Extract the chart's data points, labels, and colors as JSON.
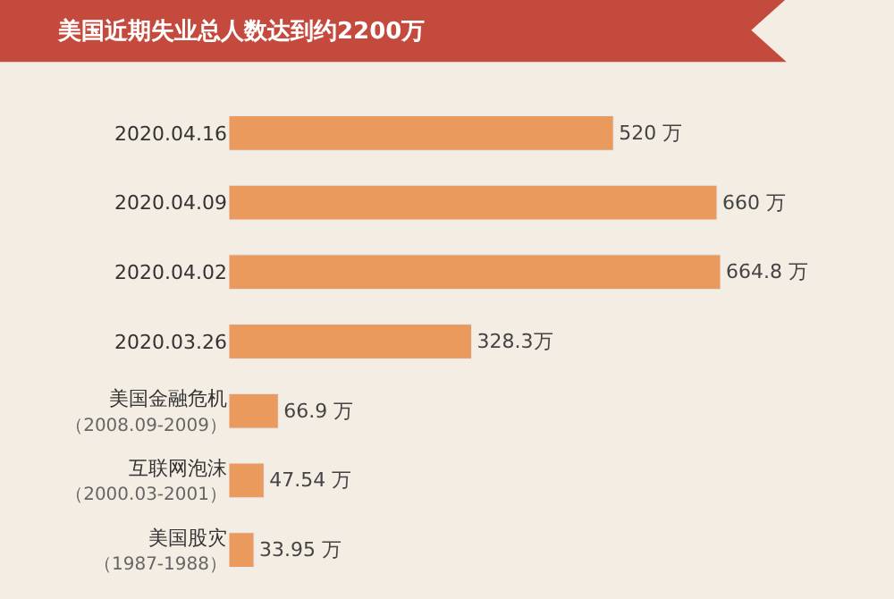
{
  "chart_data": {
    "type": "bar",
    "orientation": "horizontal",
    "title": "美国近期失业总人数达到约2200万",
    "categories": [
      "2020.04.16",
      "2020.04.09",
      "2020.04.02",
      "2020.03.26",
      "美国金融危机（2008.09-2009）",
      "互联网泡沫（2000.03-2001）",
      "美国股灾（1987-1988）"
    ],
    "values": [
      520,
      660,
      664.8,
      328.3,
      66.9,
      47.54,
      33.95
    ],
    "value_labels": [
      "520 万",
      "660 万",
      "664.8 万",
      "328.3万",
      "66.9 万",
      "47.54 万",
      "33.95 万"
    ],
    "color": "#eb9a5e"
  }
}
